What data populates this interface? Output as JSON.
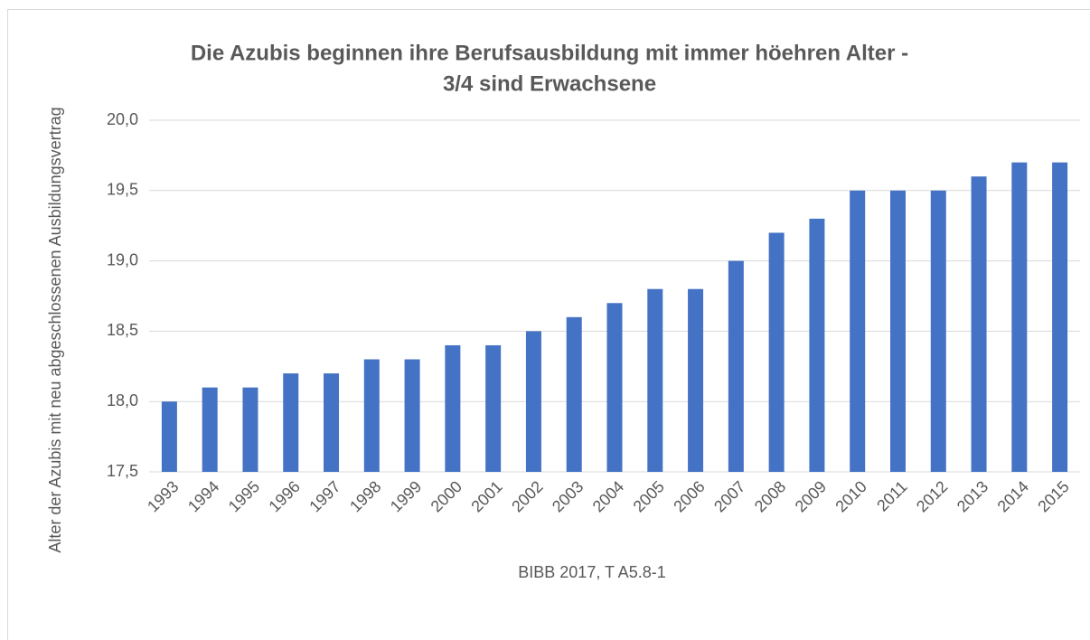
{
  "chart_data": {
    "type": "bar",
    "title": [
      "Die Azubis beginnen ihre Berufsausbildung mit immer höehren Alter -",
      "3/4 sind Erwachsene"
    ],
    "y_label": "Alter der Azubis mit neu abgeschlossenen Ausbildungsvertrag",
    "x_label": "BIBB 2017, T A5.8-1",
    "categories": [
      "1993",
      "1994",
      "1995",
      "1996",
      "1997",
      "1998",
      "1999",
      "2000",
      "2001",
      "2002",
      "2003",
      "2004",
      "2005",
      "2006",
      "2007",
      "2008",
      "2009",
      "2010",
      "2011",
      "2012",
      "2013",
      "2014",
      "2015"
    ],
    "values": [
      18.0,
      18.1,
      18.1,
      18.2,
      18.2,
      18.3,
      18.3,
      18.4,
      18.4,
      18.5,
      18.6,
      18.7,
      18.8,
      18.8,
      19.0,
      19.2,
      19.3,
      19.5,
      19.5,
      19.5,
      19.6,
      19.7,
      19.7
    ],
    "color": "#4472c4",
    "ylim": [
      17.5,
      20.0
    ],
    "yticks": [
      {
        "value": 17.5,
        "label": "17,5"
      },
      {
        "value": 18.0,
        "label": "18,0"
      },
      {
        "value": 18.5,
        "label": "18,5"
      },
      {
        "value": 19.0,
        "label": "19,0"
      },
      {
        "value": 19.5,
        "label": "19,5"
      },
      {
        "value": 20.0,
        "label": "20,0"
      }
    ],
    "grid": true
  }
}
